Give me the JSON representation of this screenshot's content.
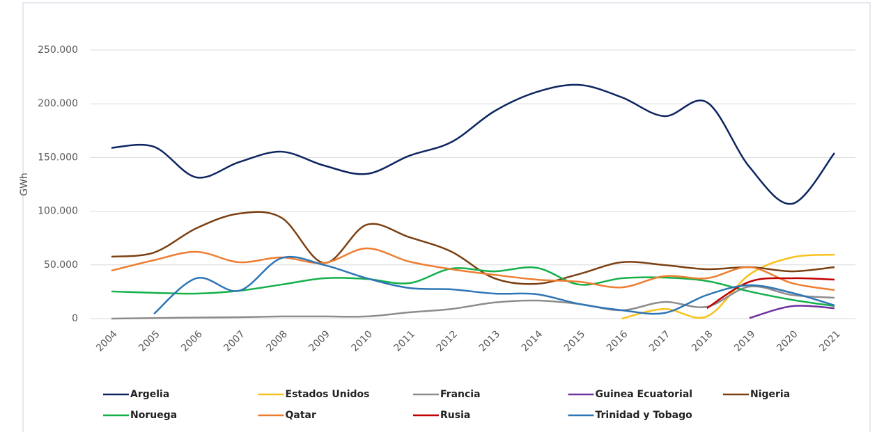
{
  "chart_data": {
    "type": "line",
    "y_label": "GWh",
    "categories": [
      "2004",
      "2005",
      "2006",
      "2007",
      "2008",
      "2009",
      "2010",
      "2011",
      "2012",
      "2013",
      "2014",
      "2015",
      "2016",
      "2017",
      "2018",
      "2019",
      "2020",
      "2021"
    ],
    "ylim": [
      0,
      250000
    ],
    "yticks": [
      0,
      {
        "value": 50000,
        "label": "50.000"
      },
      {
        "value": 100000,
        "label": "100.000"
      },
      {
        "value": 150000,
        "label": "150.000"
      },
      {
        "value": 200000,
        "label": "200.000"
      },
      {
        "value": 250000,
        "label": "250.000"
      }
    ],
    "grid": true,
    "legend": "bottom",
    "series": [
      {
        "name": "Argelia",
        "color": "#0d2560",
        "values": [
          159000,
          160000,
          131500,
          145700,
          155400,
          142500,
          134700,
          151600,
          164500,
          193000,
          211000,
          217600,
          206000,
          188500,
          201400,
          141200,
          106900,
          154200
        ]
      },
      {
        "name": "Estados Unidos",
        "color": "#f7c21b",
        "values": [
          null,
          null,
          null,
          null,
          null,
          null,
          null,
          null,
          null,
          null,
          null,
          null,
          0,
          9000,
          2000,
          41000,
          57000,
          59600
        ]
      },
      {
        "name": "Francia",
        "color": "#8c8c8c",
        "values": [
          0,
          500,
          1000,
          1300,
          2000,
          2000,
          2000,
          5800,
          9000,
          15000,
          16800,
          13600,
          7800,
          15500,
          11000,
          29800,
          22000,
          19400
        ]
      },
      {
        "name": "Guinea Ecuatorial",
        "color": "#7030a0",
        "values": [
          null,
          null,
          null,
          null,
          null,
          null,
          null,
          null,
          null,
          null,
          null,
          null,
          null,
          null,
          null,
          500,
          11600,
          9700
        ]
      },
      {
        "name": "Nigeria",
        "color": "#7b3f12",
        "values": [
          57600,
          61500,
          84200,
          97800,
          93900,
          51800,
          87400,
          75800,
          62200,
          37600,
          32400,
          41500,
          52500,
          49900,
          46000,
          47900,
          44000,
          47900
        ]
      },
      {
        "name": "Noruega",
        "color": "#14b04a",
        "values": [
          25300,
          24000,
          23300,
          25900,
          31700,
          37600,
          36900,
          33000,
          46600,
          44000,
          47300,
          31700,
          37600,
          38200,
          35000,
          25300,
          17500,
          11700
        ]
      },
      {
        "name": "Qatar",
        "color": "#ed7d31",
        "values": [
          44700,
          54400,
          62200,
          52500,
          57000,
          51800,
          65400,
          53100,
          46000,
          40800,
          36300,
          34300,
          29100,
          39500,
          37600,
          47900,
          33000,
          26600
        ]
      },
      {
        "name": "Rusia",
        "color": "#c00000",
        "values": [
          null,
          null,
          null,
          null,
          null,
          null,
          null,
          null,
          null,
          null,
          null,
          null,
          null,
          null,
          9700,
          34300,
          37600,
          36300
        ]
      },
      {
        "name": "Trinidad y Tobago",
        "color": "#2e75b6",
        "values": [
          null,
          4500,
          37600,
          25900,
          56400,
          49900,
          37600,
          28500,
          27200,
          23300,
          22700,
          13600,
          7800,
          5200,
          22000,
          31100,
          24000,
          12300
        ]
      }
    ]
  }
}
